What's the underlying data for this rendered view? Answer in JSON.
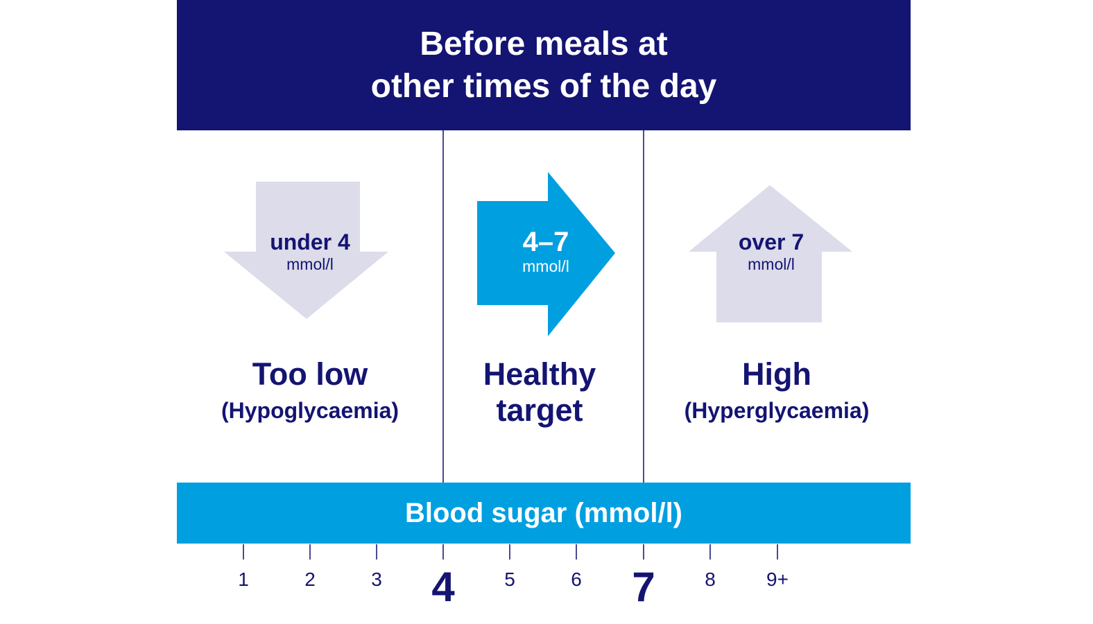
{
  "header": {
    "line1": "Before meals at",
    "line2": "other times of the day"
  },
  "colors": {
    "navy": "#141473",
    "blue": "#009fe0",
    "lavender": "#dcdcea"
  },
  "categories": [
    {
      "value": "under 4",
      "unit": "mmol/l",
      "title": "Too low",
      "subtitle": "(Hypoglycaemia)",
      "arrow": "arrow-down-icon"
    },
    {
      "value": "4–7",
      "unit": "mmol/l",
      "title": "Healthy",
      "subtitle": "target",
      "arrow": "arrow-right-icon"
    },
    {
      "value": "over 7",
      "unit": "mmol/l",
      "title": "High",
      "subtitle": "(Hyperglycaemia)",
      "arrow": "arrow-up-icon"
    }
  ],
  "scale": {
    "label": "Blood sugar (mmol/l)",
    "ticks": [
      "1",
      "2",
      "3",
      "4",
      "5",
      "6",
      "7",
      "8",
      "9+"
    ]
  }
}
